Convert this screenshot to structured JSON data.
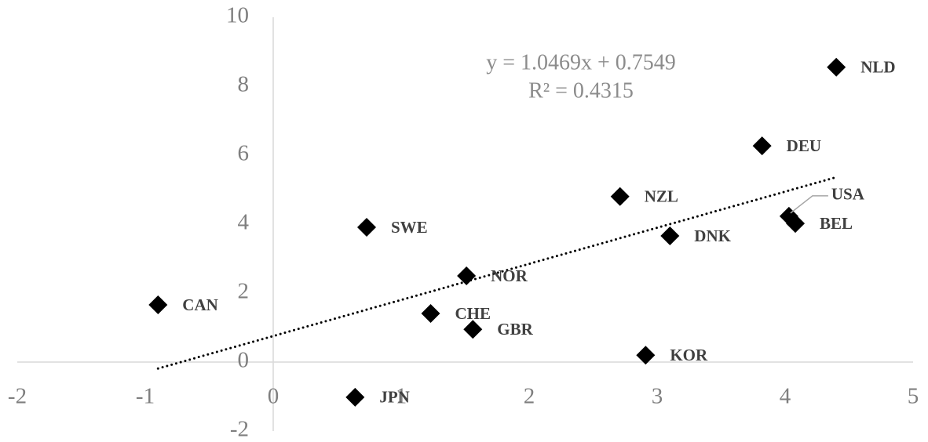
{
  "chart_data": {
    "type": "scatter",
    "point_labels": [
      "NLD",
      "DEU",
      "NZL",
      "USA",
      "BEL",
      "DNK",
      "SWE",
      "NOR",
      "CAN",
      "CHE",
      "GBR",
      "KOR",
      "JPN"
    ],
    "x": [
      4.4,
      3.82,
      2.71,
      4.03,
      4.08,
      3.1,
      0.73,
      1.51,
      -0.9,
      1.23,
      1.56,
      2.91,
      0.64
    ],
    "values": [
      8.55,
      6.27,
      4.8,
      4.23,
      4.02,
      3.66,
      3.91,
      2.5,
      1.66,
      1.41,
      0.95,
      0.2,
      -1.02
    ],
    "color": "#000000",
    "xlim": [
      -2,
      5
    ],
    "xticks": [
      -2,
      -1,
      0,
      1,
      2,
      3,
      4,
      5
    ],
    "ylim": [
      -2,
      10
    ],
    "yticks": [
      -2,
      0,
      2,
      4,
      6,
      8,
      10
    ],
    "grid": false,
    "trendline": {
      "slope": 1.0469,
      "intercept": 0.7549,
      "equation": "y = 1.0469x + 0.7549",
      "r2_label": "R² = 0.4315"
    }
  }
}
